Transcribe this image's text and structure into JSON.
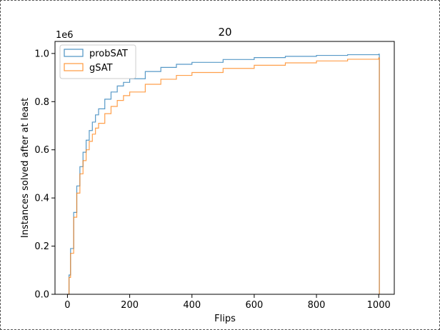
{
  "chart_data": {
    "type": "histogram-step",
    "title": "20",
    "xlabel": "Flips",
    "ylabel": "Instances solved after at least",
    "y_offset_text": "1e6",
    "xlim": [
      -40,
      1050
    ],
    "ylim": [
      0,
      1.05
    ],
    "x_ticks": [
      0,
      200,
      400,
      600,
      800,
      1000
    ],
    "x_tick_labels": [
      "0",
      "200",
      "400",
      "600",
      "800",
      "1000"
    ],
    "y_ticks": [
      0.0,
      0.2,
      0.4,
      0.6,
      0.8,
      1.0
    ],
    "y_tick_labels": [
      "0.0",
      "0.2",
      "0.4",
      "0.6",
      "0.8",
      "1.0"
    ],
    "legend_position": "upper-left",
    "series": [
      {
        "name": "probSAT",
        "color": "#1f77b4",
        "x": [
          0,
          5,
          10,
          20,
          30,
          40,
          50,
          60,
          70,
          80,
          90,
          100,
          120,
          140,
          160,
          180,
          200,
          250,
          300,
          350,
          400,
          500,
          600,
          700,
          800,
          900,
          1000
        ],
        "y": [
          0.0,
          0.08,
          0.19,
          0.34,
          0.45,
          0.53,
          0.59,
          0.64,
          0.68,
          0.715,
          0.745,
          0.77,
          0.81,
          0.84,
          0.865,
          0.88,
          0.895,
          0.925,
          0.942,
          0.955,
          0.963,
          0.975,
          0.983,
          0.988,
          0.992,
          0.995,
          0.997
        ]
      },
      {
        "name": "gSAT",
        "color": "#ff7f0e",
        "x": [
          0,
          5,
          10,
          20,
          30,
          40,
          50,
          60,
          70,
          80,
          90,
          100,
          120,
          140,
          160,
          180,
          200,
          250,
          300,
          350,
          400,
          500,
          600,
          700,
          800,
          900,
          1000
        ],
        "y": [
          0.0,
          0.07,
          0.17,
          0.32,
          0.42,
          0.5,
          0.555,
          0.6,
          0.635,
          0.665,
          0.69,
          0.71,
          0.75,
          0.78,
          0.805,
          0.825,
          0.84,
          0.872,
          0.893,
          0.909,
          0.921,
          0.938,
          0.951,
          0.961,
          0.969,
          0.976,
          0.982
        ]
      }
    ]
  }
}
